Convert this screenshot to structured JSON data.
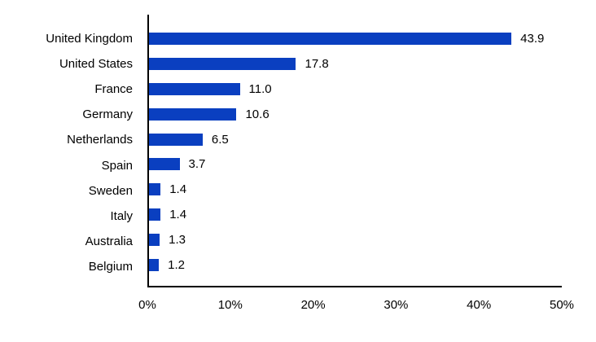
{
  "chart_data": {
    "type": "bar",
    "orientation": "horizontal",
    "title": "",
    "xlabel": "",
    "ylabel": "",
    "categories": [
      "United Kingdom",
      "United States",
      "France",
      "Germany",
      "Netherlands",
      "Spain",
      "Sweden",
      "Italy",
      "Australia",
      "Belgium"
    ],
    "values": [
      43.9,
      17.8,
      11.0,
      10.6,
      6.5,
      3.7,
      1.4,
      1.4,
      1.3,
      1.2
    ],
    "value_labels": [
      "43.9",
      "17.8",
      "11.0",
      "10.6",
      "6.5",
      "3.7",
      "1.4",
      "1.4",
      "1.3",
      "1.2"
    ],
    "x_ticks": [
      "0%",
      "10%",
      "20%",
      "30%",
      "40%",
      "50%"
    ],
    "xlim": [
      0,
      50
    ],
    "grid": false,
    "legend": false,
    "bar_color": "#0a3fc0",
    "axis_color": "#000000",
    "text_color": "#000000",
    "background_color": "#ffffff"
  }
}
